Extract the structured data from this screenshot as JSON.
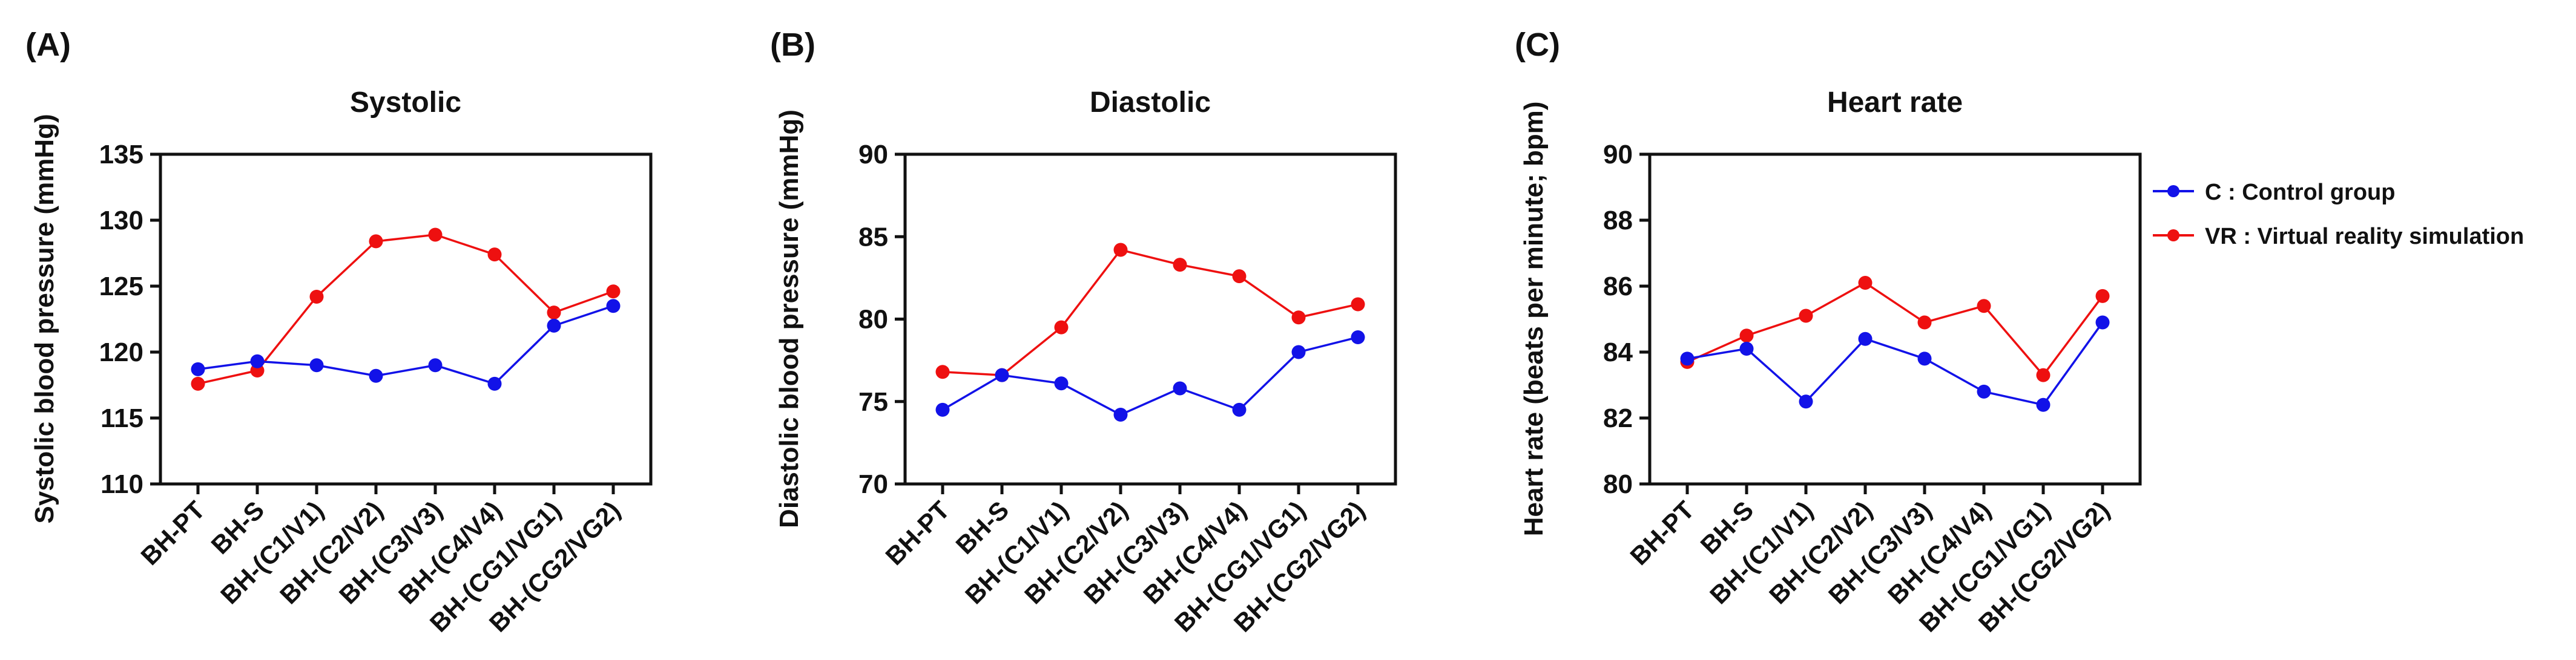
{
  "figure": {
    "background": "#ffffff",
    "frame_color": "#111111",
    "text_color": "#111111"
  },
  "legend": {
    "position": "right-of-figure",
    "items": [
      {
        "label": "C : Control group",
        "short": "C",
        "color": "#1212e8",
        "marker": "circle-on-line"
      },
      {
        "label": "VR : Virtual reality simulation",
        "short": "VR",
        "color": "#ee1010",
        "marker": "circle-on-line"
      }
    ]
  },
  "chart_data": [
    {
      "type": "line",
      "panel_label": "(A)",
      "title": "Systolic",
      "ylabel": "Systolic blood pressure (mmHg)",
      "xlabel": "",
      "categories": [
        "BH-PT",
        "BH-S",
        "BH-(C1/V1)",
        "BH-(C2/V2)",
        "BH-(C3/V3)",
        "BH-(C4/V4)",
        "BH-(CG1/VG1)",
        "BH-(CG2/VG2)"
      ],
      "ylim": [
        110,
        135
      ],
      "yticks": [
        110,
        115,
        120,
        125,
        130,
        135
      ],
      "grid": false,
      "legend_position": "outside-right",
      "series": [
        {
          "name": "C : Control group",
          "color": "#1212e8",
          "values": [
            118.7,
            119.3,
            119.0,
            118.2,
            119.0,
            117.6,
            122.0,
            123.5
          ]
        },
        {
          "name": "VR : Virtual reality simulation",
          "color": "#ee1010",
          "values": [
            117.6,
            118.6,
            124.2,
            128.4,
            128.9,
            127.4,
            123.0,
            124.6
          ]
        }
      ]
    },
    {
      "type": "line",
      "panel_label": "(B)",
      "title": "Diastolic",
      "ylabel": "Diastolic blood pressure (mmHg)",
      "xlabel": "",
      "categories": [
        "BH-PT",
        "BH-S",
        "BH-(C1/V1)",
        "BH-(C2/V2)",
        "BH-(C3/V3)",
        "BH-(C4/V4)",
        "BH-(CG1/VG1)",
        "BH-(CG2/VG2)"
      ],
      "ylim": [
        70,
        90
      ],
      "yticks": [
        70,
        75,
        80,
        85,
        90
      ],
      "grid": false,
      "legend_position": "outside-right",
      "series": [
        {
          "name": "C : Control group",
          "color": "#1212e8",
          "values": [
            74.5,
            76.6,
            76.1,
            74.2,
            75.8,
            74.5,
            78.0,
            78.9
          ]
        },
        {
          "name": "VR : Virtual reality simulation",
          "color": "#ee1010",
          "values": [
            76.8,
            76.6,
            79.5,
            84.2,
            83.3,
            82.6,
            80.1,
            80.9
          ]
        }
      ]
    },
    {
      "type": "line",
      "panel_label": "(C)",
      "title": "Heart rate",
      "ylabel": "Heart rate (beats per minute; bpm)",
      "xlabel": "",
      "categories": [
        "BH-PT",
        "BH-S",
        "BH-(C1/V1)",
        "BH-(C2/V2)",
        "BH-(C3/V3)",
        "BH-(C4/V4)",
        "BH-(CG1/VG1)",
        "BH-(CG2/VG2)"
      ],
      "ylim": [
        80,
        90
      ],
      "yticks": [
        80,
        82,
        84,
        86,
        88,
        90
      ],
      "grid": false,
      "legend_position": "outside-right",
      "series": [
        {
          "name": "C : Control group",
          "color": "#1212e8",
          "values": [
            83.8,
            84.1,
            82.5,
            84.4,
            83.8,
            82.8,
            82.4,
            84.9
          ]
        },
        {
          "name": "VR : Virtual reality simulation",
          "color": "#ee1010",
          "values": [
            83.7,
            84.5,
            85.1,
            86.1,
            84.9,
            85.4,
            83.3,
            85.7
          ]
        }
      ]
    }
  ]
}
